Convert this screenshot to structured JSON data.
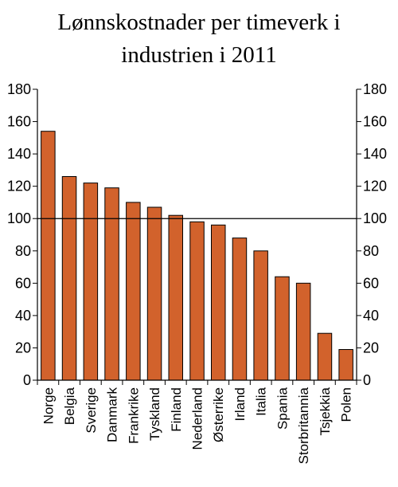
{
  "chart_data": {
    "type": "bar",
    "title": [
      "Lønnskostnader per timeverk i",
      "industrien i 2011"
    ],
    "xlabel": "",
    "ylabel": "",
    "categories": [
      "Norge",
      "Belgia",
      "Sverige",
      "Danmark",
      "Frankrike",
      "Tyskland",
      "Finland",
      "Nederland",
      "Østerrike",
      "Irland",
      "Italia",
      "Spania",
      "Storbritannia",
      "Tsjekkia",
      "Polen"
    ],
    "values": [
      154,
      126,
      122,
      119,
      110,
      107,
      102,
      98,
      96,
      88,
      80,
      64,
      60,
      29,
      19
    ],
    "ylim": [
      0,
      180
    ],
    "yticks": [
      "0",
      "20",
      "40",
      "60",
      "80",
      "100",
      "120",
      "140",
      "160",
      "180"
    ],
    "reference_line": 100,
    "bar_color": "#d2622c",
    "bar_edge_color": "#000000",
    "grid": false,
    "secondary_y_axis": true
  }
}
